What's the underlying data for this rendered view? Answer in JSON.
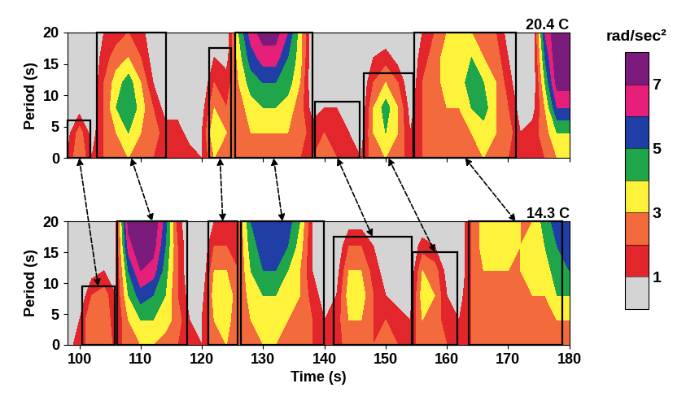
{
  "chart_data": [
    {
      "type": "contour",
      "title": "20.4 C",
      "ylabel": "Period (s)",
      "tick_labels": "y",
      "x": [
        98,
        100,
        102,
        104,
        106,
        108,
        110,
        112,
        114,
        116,
        118,
        120,
        122,
        124,
        126,
        128,
        130,
        132,
        134,
        136,
        138,
        140,
        142,
        144,
        146,
        148,
        150,
        152,
        154,
        156,
        158,
        160,
        162,
        164,
        166,
        168,
        170,
        172,
        174,
        176,
        178,
        180
      ],
      "y": [
        0,
        4,
        8,
        12,
        16,
        20
      ],
      "cells": [
        [
          1,
          0.5,
          0,
          0,
          0,
          0
        ],
        [
          3,
          2.5,
          0.5,
          0,
          0,
          0
        ],
        [
          1,
          0.5,
          0,
          0,
          0,
          0
        ],
        [
          2,
          2,
          2,
          2,
          1.5,
          1
        ],
        [
          2.5,
          3,
          4,
          3.5,
          2.5,
          1.5
        ],
        [
          3,
          4,
          5,
          4.5,
          3,
          2
        ],
        [
          2.5,
          3,
          3.5,
          3,
          2,
          1.5
        ],
        [
          2,
          2.5,
          2,
          1,
          0.5,
          0
        ],
        [
          2,
          1.5,
          0.5,
          0,
          0,
          0
        ],
        [
          2,
          1.5,
          0.5,
          0,
          0,
          0
        ],
        [
          1.5,
          0.5,
          0,
          0,
          0,
          0
        ],
        [
          1,
          1,
          0.5,
          0,
          0,
          0
        ],
        [
          3,
          4,
          3,
          2,
          1,
          0
        ],
        [
          2.5,
          3,
          2,
          1.5,
          0.5,
          0
        ],
        [
          2,
          2.5,
          2.5,
          3,
          3.5,
          4
        ],
        [
          3,
          3,
          3.5,
          4.5,
          5.5,
          6.5
        ],
        [
          2.5,
          3,
          4,
          5,
          6.5,
          7.5
        ],
        [
          2.5,
          3,
          4,
          5,
          6.5,
          7.5
        ],
        [
          3,
          3,
          3.5,
          4.5,
          5,
          6
        ],
        [
          2,
          2.5,
          2.5,
          3,
          3.5,
          3.5
        ],
        [
          2,
          1.5,
          0.5,
          0,
          0,
          0
        ],
        [
          2.5,
          2,
          1,
          0,
          0,
          0
        ],
        [
          2,
          2,
          1,
          0,
          0,
          0
        ],
        [
          1.5,
          1,
          0,
          0,
          0,
          0
        ],
        [
          1,
          0.5,
          0,
          0,
          0,
          0
        ],
        [
          2.5,
          3,
          3,
          2,
          1,
          0
        ],
        [
          3,
          4,
          4.5,
          3,
          1.5,
          0
        ],
        [
          2.5,
          3,
          3,
          2,
          0.5,
          0
        ],
        [
          1.5,
          1,
          0.5,
          0,
          0,
          0
        ],
        [
          2,
          2,
          2,
          2,
          1.5,
          1
        ],
        [
          3,
          3,
          2.5,
          2.5,
          2.5,
          2
        ],
        [
          2.5,
          2.5,
          3,
          3.5,
          3.5,
          3
        ],
        [
          2,
          2.5,
          3,
          3.5,
          4,
          3.5
        ],
        [
          2.5,
          3,
          4,
          4.5,
          4,
          3
        ],
        [
          3,
          3.5,
          4.5,
          4,
          3,
          2.5
        ],
        [
          2.5,
          3,
          3,
          3,
          2.5,
          2
        ],
        [
          2,
          2.5,
          2,
          1.5,
          1,
          0.5
        ],
        [
          1.5,
          1,
          0.5,
          0,
          0,
          0
        ],
        [
          2,
          1.5,
          0.5,
          0,
          0,
          0
        ],
        [
          2,
          2.5,
          3,
          4,
          5,
          6
        ],
        [
          3,
          4,
          6,
          7.5,
          8,
          8
        ],
        [
          3,
          4,
          6,
          7.5,
          8,
          8
        ]
      ],
      "xlim": [
        98,
        180
      ],
      "xticks": [
        100,
        110,
        120,
        130,
        140,
        150,
        160,
        170,
        180
      ],
      "ylim": [
        0,
        20
      ],
      "yticks": [
        0,
        5,
        10,
        15,
        20
      ],
      "boxes": [
        {
          "x": [
            98.1,
            101.8
          ],
          "top": 6
        },
        {
          "x": [
            102.8,
            114.1
          ],
          "top": 20
        },
        {
          "x": [
            121.2,
            124.7
          ],
          "top": 17.5
        },
        {
          "x": [
            125.4,
            138.0
          ],
          "top": 20
        },
        {
          "x": [
            138.4,
            145.8
          ],
          "top": 9
        },
        {
          "x": [
            146.4,
            154.5
          ],
          "top": 13.5
        },
        {
          "x": [
            154.6,
            171.3
          ],
          "top": 20
        }
      ]
    },
    {
      "type": "contour",
      "title": "14.3 C",
      "ylabel": "Period (s)",
      "xlabel": "Time (s)",
      "x": [
        98,
        100,
        102,
        104,
        106,
        108,
        110,
        112,
        114,
        116,
        118,
        120,
        122,
        124,
        126,
        128,
        130,
        132,
        134,
        136,
        138,
        140,
        142,
        144,
        146,
        148,
        150,
        152,
        154,
        156,
        158,
        160,
        162,
        164,
        166,
        168,
        170,
        172,
        174,
        176,
        178,
        180
      ],
      "y": [
        0,
        4,
        8,
        12,
        16,
        20
      ],
      "cells": [
        [
          0.5,
          0,
          0,
          0,
          0,
          0
        ],
        [
          1.5,
          1,
          0,
          0,
          0,
          0
        ],
        [
          2.5,
          3,
          2,
          0.5,
          0,
          0
        ],
        [
          3,
          3,
          2.5,
          1,
          0,
          0
        ],
        [
          1.5,
          1,
          1,
          1,
          1,
          1
        ],
        [
          2.5,
          3,
          4,
          5,
          6.5,
          7.5
        ],
        [
          3,
          4,
          5.5,
          7,
          8,
          8
        ],
        [
          3,
          4,
          5,
          6.5,
          7.5,
          8
        ],
        [
          2.5,
          3.5,
          4,
          4.5,
          5,
          5.5
        ],
        [
          2,
          2.5,
          2,
          2,
          2,
          1.5
        ],
        [
          1.5,
          1,
          0.5,
          0,
          0,
          0
        ],
        [
          1,
          1,
          0.5,
          0,
          0,
          0
        ],
        [
          2.5,
          3,
          3.5,
          3,
          2,
          1
        ],
        [
          3,
          3.5,
          4,
          3,
          2,
          1
        ],
        [
          2,
          2,
          2,
          2,
          2,
          2
        ],
        [
          3,
          3,
          3.5,
          4,
          4.5,
          5
        ],
        [
          3,
          3.5,
          4,
          5,
          5.5,
          6
        ],
        [
          3,
          3.5,
          4,
          5,
          6,
          6
        ],
        [
          2.5,
          3,
          3.5,
          4,
          5,
          5.5
        ],
        [
          2.5,
          2.5,
          3,
          3,
          3.5,
          4
        ],
        [
          2,
          2,
          1.5,
          1,
          1,
          1
        ],
        [
          1.5,
          1,
          0.5,
          0,
          0,
          0
        ],
        [
          1.5,
          1.5,
          1,
          0.5,
          0,
          0
        ],
        [
          2.5,
          3,
          3.5,
          3,
          2,
          0.5
        ],
        [
          3,
          3,
          3.5,
          3,
          2,
          0.5
        ],
        [
          2,
          2,
          2,
          1.5,
          1,
          0
        ],
        [
          2.5,
          2,
          1,
          0.5,
          0,
          0
        ],
        [
          2,
          1.5,
          0.5,
          0,
          0,
          0
        ],
        [
          1.5,
          1,
          0.5,
          0,
          0,
          0
        ],
        [
          2.5,
          3,
          3.5,
          3,
          1.5,
          0
        ],
        [
          2.5,
          2.5,
          3,
          2.5,
          1,
          0
        ],
        [
          2,
          1.5,
          1,
          0.5,
          0,
          0
        ],
        [
          1,
          1,
          0.5,
          0,
          0,
          0
        ],
        [
          2,
          2,
          2,
          2,
          2,
          2
        ],
        [
          3,
          3,
          3,
          3,
          3.5,
          3.5
        ],
        [
          2.5,
          3,
          3,
          3,
          3.5,
          4
        ],
        [
          2,
          2.5,
          3,
          3,
          3.5,
          3.5
        ],
        [
          2.5,
          3,
          3,
          3,
          3,
          3
        ],
        [
          3,
          3,
          3,
          3.5,
          3.5,
          3
        ],
        [
          2.5,
          3,
          3,
          3.5,
          4,
          4.5
        ],
        [
          2.5,
          3,
          4,
          4.5,
          5,
          5.5
        ],
        [
          2,
          3,
          4,
          5,
          5.5,
          6
        ]
      ],
      "xlim": [
        98,
        180
      ],
      "xticks": [
        100,
        110,
        120,
        130,
        140,
        150,
        160,
        170,
        180
      ],
      "ylim": [
        0,
        20
      ],
      "yticks": [
        0,
        5,
        10,
        15,
        20
      ],
      "boxes": [
        {
          "x": [
            100.4,
            105.7
          ],
          "top": 9.5
        },
        {
          "x": [
            106.2,
            117.6
          ],
          "top": 20
        },
        {
          "x": [
            121.0,
            125.8
          ],
          "top": 20
        },
        {
          "x": [
            126.4,
            139.9
          ],
          "top": 20
        },
        {
          "x": [
            141.5,
            154.2
          ],
          "top": 17.5
        },
        {
          "x": [
            154.4,
            161.7
          ],
          "top": 15
        },
        {
          "x": [
            163.6,
            178.9
          ],
          "top": 20
        }
      ]
    }
  ],
  "colorbar": {
    "label": "rad/sec²",
    "range": [
      0,
      8
    ],
    "levels": [
      1,
      2,
      3,
      4,
      5,
      6,
      7
    ],
    "ticks": [
      1,
      3,
      5,
      7
    ],
    "colors": [
      "#d4d4d4",
      "#e3262b",
      "#f36a3c",
      "#fff23a",
      "#1fa54a",
      "#1f3fa6",
      "#e6207a",
      "#7b1c7c"
    ]
  }
}
